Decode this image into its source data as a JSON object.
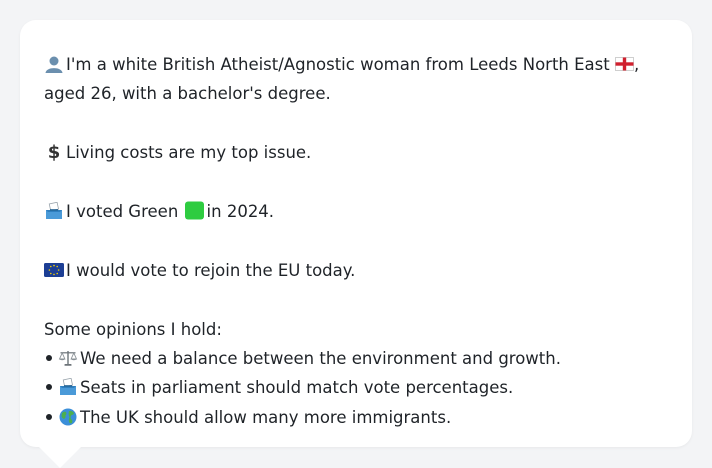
{
  "card": {
    "intro_line1": "I'm a white British Atheist/Agnostic woman from Leeds North East",
    "intro_line1_suffix": ",",
    "intro_line2": "aged 26, with a bachelor's degree.",
    "issue": "Living costs are my top issue.",
    "vote_prefix": "I voted Green",
    "vote_suffix": "in 2024.",
    "eu": "I would vote to rejoin the EU today.",
    "opinions_heading": "Some opinions I hold:",
    "opinions": [
      {
        "icon": "balance-scale-icon",
        "text": "We need a balance between the environment and growth."
      },
      {
        "icon": "ballot-box-icon",
        "text": "Seats in parliament should match vote percentages."
      },
      {
        "icon": "globe-icon",
        "text": "The UK should allow many more immigrants."
      }
    ]
  },
  "colors": {
    "background": "#f3f4f6",
    "card": "#ffffff",
    "text": "#1f2328",
    "green_square": "#2ecc40"
  }
}
